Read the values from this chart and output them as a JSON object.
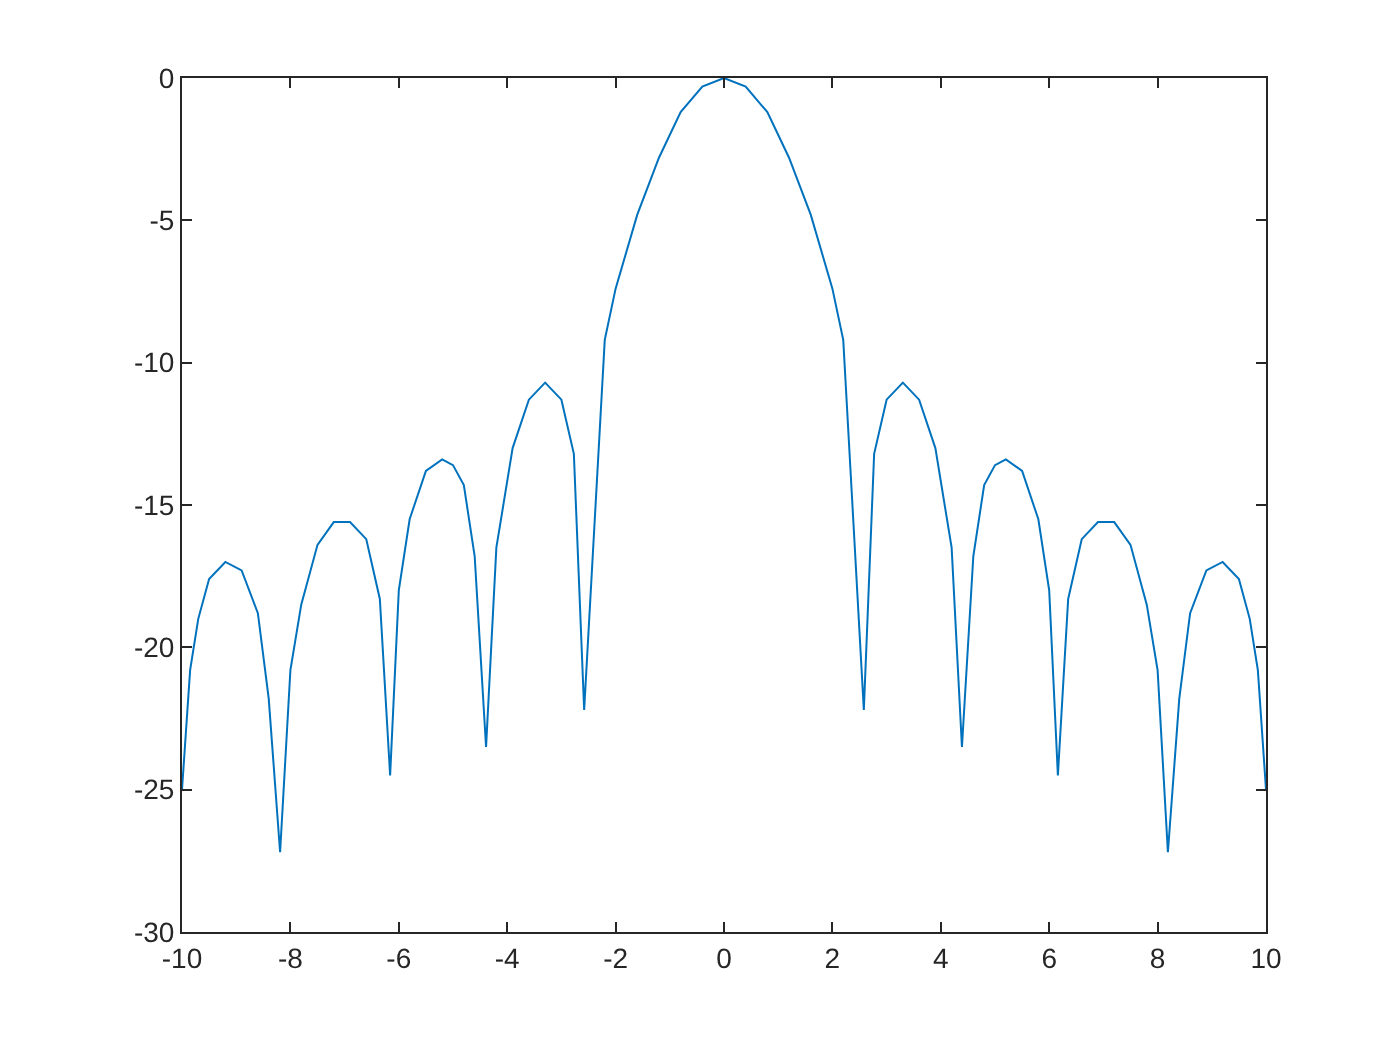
{
  "chart_data": {
    "type": "line",
    "x": [
      -10,
      -9.85,
      -9.7,
      -9.5,
      -9.2,
      -8.9,
      -8.6,
      -8.4,
      -8.19,
      -8.0,
      -7.8,
      -7.5,
      -7.2,
      -6.9,
      -6.6,
      -6.35,
      -6.16,
      -6.0,
      -5.8,
      -5.5,
      -5.2,
      -5.0,
      -4.8,
      -4.6,
      -4.39,
      -4.2,
      -3.9,
      -3.6,
      -3.3,
      -3.0,
      -2.77,
      -2.58,
      -2.2,
      -2.0,
      -1.6,
      -1.2,
      -0.8,
      -0.4,
      0,
      0.4,
      0.8,
      1.2,
      1.6,
      2.0,
      2.2,
      2.58,
      2.77,
      3.0,
      3.3,
      3.6,
      3.9,
      4.2,
      4.39,
      4.6,
      4.8,
      5.0,
      5.2,
      5.5,
      5.8,
      6.0,
      6.16,
      6.35,
      6.6,
      6.9,
      7.2,
      7.5,
      7.8,
      8.0,
      8.19,
      8.4,
      8.6,
      8.9,
      9.2,
      9.5,
      9.7,
      9.85,
      10
    ],
    "series": [
      {
        "color": "#0072bd",
        "values": [
          -25,
          -20.8,
          -19.0,
          -17.6,
          -17.0,
          -17.3,
          -18.8,
          -21.8,
          -27.2,
          -20.8,
          -18.5,
          -16.4,
          -15.6,
          -15.6,
          -16.2,
          -18.3,
          -24.5,
          -18.0,
          -15.5,
          -13.8,
          -13.4,
          -13.6,
          -14.3,
          -16.8,
          -23.5,
          -16.5,
          -13.0,
          -11.3,
          -10.7,
          -11.3,
          -13.2,
          -22.2,
          -9.2,
          -7.4,
          -4.8,
          -2.8,
          -1.2,
          -0.3,
          0,
          -0.3,
          -1.2,
          -2.8,
          -4.8,
          -7.4,
          -9.2,
          -22.2,
          -13.2,
          -11.3,
          -10.7,
          -11.3,
          -13.0,
          -16.5,
          -23.5,
          -16.8,
          -14.3,
          -13.6,
          -13.4,
          -13.8,
          -15.5,
          -18.0,
          -24.5,
          -18.3,
          -16.2,
          -15.6,
          -15.6,
          -16.4,
          -18.5,
          -20.8,
          -27.2,
          -21.8,
          -18.8,
          -17.3,
          -17.0,
          -17.6,
          -19.0,
          -20.8,
          -25
        ]
      }
    ],
    "xlim": [
      -10,
      10
    ],
    "xticks": [
      -10,
      -8,
      -6,
      -4,
      -2,
      0,
      2,
      4,
      6,
      8,
      10
    ],
    "ylim": [
      -30,
      0
    ],
    "yticks": [
      -30,
      -25,
      -20,
      -15,
      -10,
      -5,
      0
    ],
    "marker": "none",
    "line_style": "solid"
  }
}
